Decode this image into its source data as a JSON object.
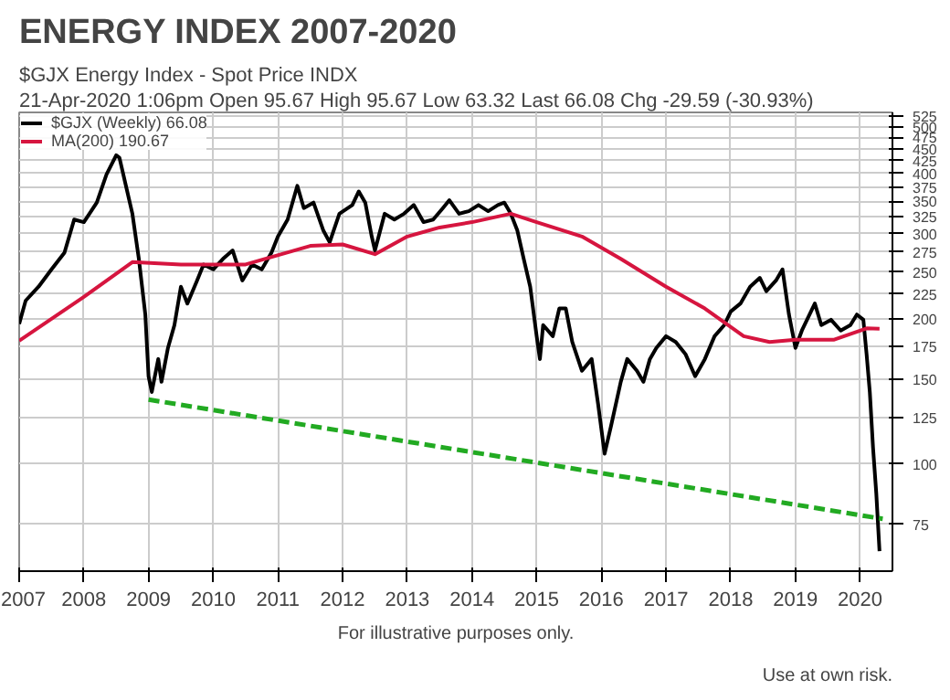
{
  "chart_data": {
    "type": "line",
    "title": "ENERGY INDEX 2007-2020",
    "subtitle": "$GJX Energy Index - Spot Price INDX",
    "annotations": [
      "21-Apr-2020 1:06pm   Open 95.67  High 95.67  Low 63.32  Last 66.08  Chg -29.59 (-30.93%)",
      "For illustrative purposes only.",
      "Use at own risk."
    ],
    "log": "y",
    "grid": true,
    "legend": "top left",
    "xlim": [
      2007,
      2020.5
    ],
    "xticks": [
      2007,
      2008,
      2009,
      2010,
      2011,
      2012,
      2013,
      2014,
      2015,
      2016,
      2017,
      2018,
      2019,
      2020
    ],
    "ylim": [
      60,
      535
    ],
    "yticks": [
      75,
      100,
      125,
      150,
      175,
      200,
      225,
      250,
      275,
      300,
      325,
      350,
      375,
      400,
      425,
      450,
      475,
      500,
      525
    ],
    "series": [
      {
        "name": "$GJX (Weekly) 66.08",
        "color": "#000000",
        "x": [
          2007.0,
          2007.1,
          2007.3,
          2007.5,
          2007.7,
          2007.85,
          2008.0,
          2008.2,
          2008.35,
          2008.5,
          2008.55,
          2008.65,
          2008.75,
          2008.85,
          2008.95,
          2009.0,
          2009.05,
          2009.15,
          2009.2,
          2009.3,
          2009.4,
          2009.5,
          2009.6,
          2009.75,
          2009.85,
          2010.0,
          2010.15,
          2010.3,
          2010.45,
          2010.6,
          2010.75,
          2010.9,
          2011.0,
          2011.15,
          2011.3,
          2011.4,
          2011.55,
          2011.7,
          2011.8,
          2011.95,
          2012.15,
          2012.25,
          2012.35,
          2012.45,
          2012.5,
          2012.65,
          2012.8,
          2012.95,
          2013.1,
          2013.25,
          2013.4,
          2013.55,
          2013.65,
          2013.8,
          2013.95,
          2014.1,
          2014.25,
          2014.4,
          2014.5,
          2014.6,
          2014.7,
          2014.8,
          2014.9,
          2015.0,
          2015.05,
          2015.1,
          2015.25,
          2015.35,
          2015.45,
          2015.55,
          2015.7,
          2015.85,
          2015.95,
          2016.05,
          2016.15,
          2016.3,
          2016.4,
          2016.55,
          2016.65,
          2016.75,
          2016.85,
          2017.0,
          2017.15,
          2017.3,
          2017.45,
          2017.6,
          2017.75,
          2017.9,
          2018.0,
          2018.15,
          2018.3,
          2018.45,
          2018.55,
          2018.7,
          2018.8,
          2018.9,
          2019.0,
          2019.1,
          2019.3,
          2019.4,
          2019.55,
          2019.7,
          2019.85,
          2019.95,
          2020.05,
          2020.1,
          2020.15,
          2020.2,
          2020.25,
          2020.3
        ],
        "values": [
          195,
          218,
          233,
          253,
          274,
          321,
          317,
          348,
          398,
          436,
          431,
          377,
          330,
          266,
          204,
          152,
          141,
          165,
          148,
          174,
          194,
          233,
          215,
          240,
          259,
          253,
          266,
          277,
          240,
          259,
          253,
          274,
          296,
          321,
          377,
          339,
          348,
          305,
          288,
          330,
          344,
          367,
          348,
          296,
          277,
          330,
          321,
          330,
          344,
          317,
          321,
          339,
          352,
          330,
          334,
          344,
          334,
          344,
          348,
          330,
          305,
          266,
          233,
          184,
          165,
          194,
          184,
          210,
          210,
          179,
          156,
          165,
          133,
          105,
          120,
          148,
          165,
          156,
          148,
          165,
          174,
          184,
          179,
          169,
          152,
          165,
          184,
          194,
          207,
          215,
          233,
          243,
          228,
          240,
          253,
          204,
          174,
          189,
          215,
          194,
          199,
          189,
          194,
          204,
          199,
          169,
          141,
          108,
          87,
          66
        ]
      },
      {
        "name": "MA(200) 190.67",
        "color": "#d6153f",
        "x": [
          2007.0,
          2008.0,
          2008.75,
          2009.5,
          2010.5,
          2011.5,
          2012.0,
          2012.5,
          2013.0,
          2013.5,
          2014.0,
          2014.6,
          2015.0,
          2015.7,
          2016.3,
          2017.0,
          2017.6,
          2018.2,
          2018.6,
          2019.0,
          2019.6,
          2020.1,
          2020.3
        ],
        "values": [
          180,
          222,
          262,
          259,
          259,
          283,
          285,
          272,
          296,
          309,
          317,
          330,
          317,
          296,
          266,
          233,
          210,
          184,
          179,
          181,
          181,
          191,
          190.67
        ]
      },
      {
        "color": "#22aa22",
        "line_style": "dashed",
        "x": [
          2009.0,
          2020.35
        ],
        "values": [
          136,
          77
        ]
      }
    ]
  }
}
